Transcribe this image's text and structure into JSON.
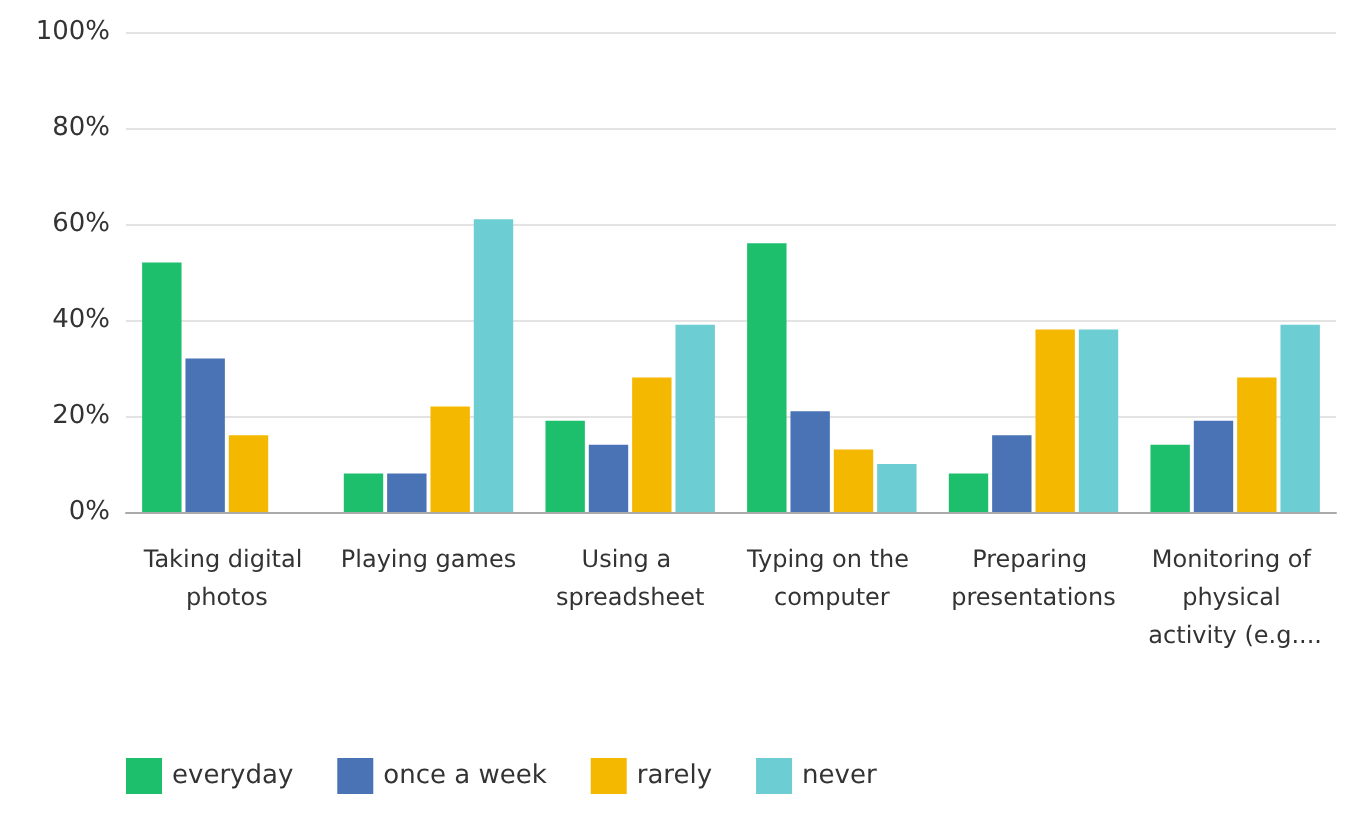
{
  "chart_data": {
    "type": "bar",
    "categories": [
      "Taking digital photos",
      "Playing games",
      "Using a spreadsheet",
      "Typing on the computer",
      "Preparing presentations",
      "Monitoring of physical activity (e.g...."
    ],
    "series": [
      {
        "name": "everyday",
        "color": "#1dbf6c",
        "values": [
          52,
          8,
          19,
          56,
          8,
          14
        ]
      },
      {
        "name": "once a week",
        "color": "#4a73b5",
        "values": [
          32,
          8,
          14,
          21,
          16,
          19
        ]
      },
      {
        "name": "rarely",
        "color": "#f5b800",
        "values": [
          16,
          22,
          28,
          13,
          38,
          28
        ]
      },
      {
        "name": "never",
        "color": "#6ccdd3",
        "values": [
          0,
          61,
          39,
          10,
          38,
          39
        ]
      }
    ],
    "ylim": [
      0,
      100
    ],
    "yticks": [
      {
        "value": 0,
        "label": "0%"
      },
      {
        "value": 20,
        "label": "20%"
      },
      {
        "value": 40,
        "label": "40%"
      },
      {
        "value": 60,
        "label": "60%"
      },
      {
        "value": 80,
        "label": "80%"
      },
      {
        "value": 100,
        "label": "100%"
      }
    ],
    "grid": "y",
    "legend": "bottom left"
  }
}
